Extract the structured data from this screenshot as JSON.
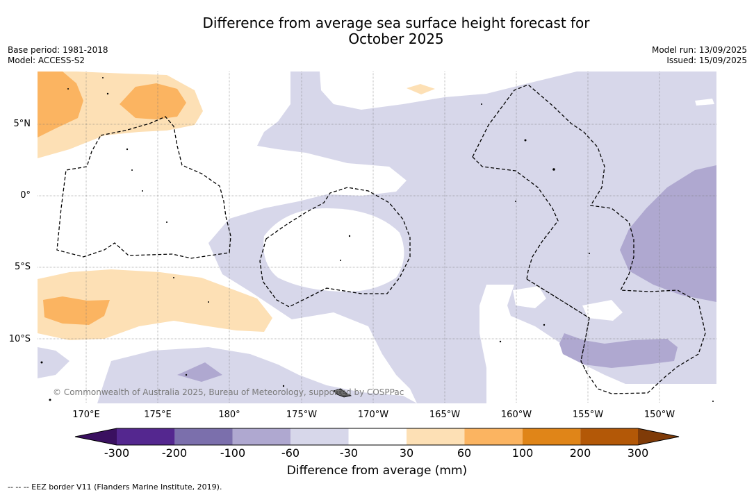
{
  "title_line1": "Difference from average sea surface height forecast for",
  "title_line2": "October 2025",
  "meta_left": [
    "Base period: 1981-2018",
    "Model: ACCESS-S2"
  ],
  "meta_right": [
    "Model run: 13/09/2025",
    "Issued: 15/09/2025"
  ],
  "lat_labels": [
    "5°N",
    "0°",
    "5°S",
    "10°S"
  ],
  "lon_labels": [
    "170°E",
    "175°E",
    "180°",
    "175°W",
    "170°W",
    "165°W",
    "160°W",
    "155°W",
    "150°W"
  ],
  "copyright": "© Commonwealth of Australia 2025, Bureau of Meteorology, supported by COSPPac",
  "colorbar": {
    "ticks": [
      "-300",
      "-200",
      "-100",
      "-60",
      "-30",
      "30",
      "60",
      "100",
      "200",
      "300"
    ],
    "colors": [
      "#3a1060",
      "#54278f",
      "#7b6fac",
      "#afa8d0",
      "#d7d7ea",
      "#ffffff",
      "#fde0b5",
      "#fbb461",
      "#e08518",
      "#b35807",
      "#7f3b08"
    ],
    "label": "Difference from average (mm)"
  },
  "eez_legend": "--  --  -- EEZ border V11 (Flanders Marine Institute, 2019)."
}
